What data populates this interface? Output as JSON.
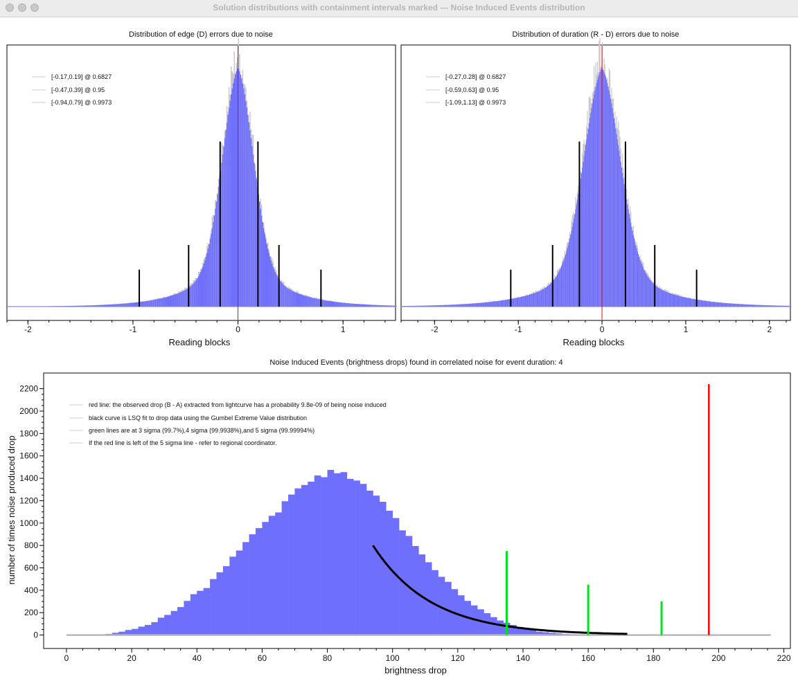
{
  "window": {
    "title": "Solution distributions with containment intervals marked --- Noise Induced Events distribution"
  },
  "colors": {
    "hist": "#6f6ffd",
    "red_line": "#ff0000",
    "green_line": "#00e020",
    "fit_curve": "#000000"
  },
  "chart_data": [
    {
      "type": "bar",
      "title": "Distribution of edge (D) errors due to noise",
      "xlabel": "Reading blocks",
      "ylabel": "",
      "xlim": [
        -2.2,
        1.5
      ],
      "xticks": [
        -2,
        -1,
        0,
        1
      ],
      "distribution": {
        "center": 0.0,
        "core_sigma": 0.15,
        "tail_scale": 0.35,
        "peak": 1.0
      },
      "red_line_x": 0,
      "interval_lines": [
        {
          "x": -0.17,
          "height": 0.67
        },
        {
          "x": 0.19,
          "height": 0.67
        },
        {
          "x": -0.47,
          "height": 0.25
        },
        {
          "x": 0.39,
          "height": 0.25
        },
        {
          "x": -0.94,
          "height": 0.15
        },
        {
          "x": 0.79,
          "height": 0.15
        }
      ],
      "legend": [
        "[-0.17,0.19] @ 0.6827",
        "[-0.47,0.39] @ 0.95",
        "[-0.94,0.79] @ 0.9973"
      ],
      "legend_position": "top-left"
    },
    {
      "type": "bar",
      "title": "Distribution of duration (R - D) errors due to noise",
      "xlabel": "Reading blocks",
      "ylabel": "",
      "xlim": [
        -2.4,
        2.25
      ],
      "xticks": [
        -2,
        -1,
        0,
        1,
        2
      ],
      "distribution": {
        "center": 0.0,
        "core_sigma": 0.22,
        "tail_scale": 0.5,
        "peak": 1.0
      },
      "red_line_x": 0,
      "interval_lines": [
        {
          "x": -0.27,
          "height": 0.67
        },
        {
          "x": 0.28,
          "height": 0.67
        },
        {
          "x": -0.59,
          "height": 0.25
        },
        {
          "x": 0.63,
          "height": 0.25
        },
        {
          "x": -1.09,
          "height": 0.15
        },
        {
          "x": 1.13,
          "height": 0.15
        }
      ],
      "legend": [
        "[-0.27,0.28] @ 0.6827",
        "[-0.59,0.63] @ 0.95",
        "[-1.09,1.13] @ 0.9973"
      ],
      "legend_position": "top-left"
    },
    {
      "type": "bar",
      "title": "Noise Induced Events (brightness drops) found in correlated noise for event duration: 4",
      "xlabel": "brightness drop",
      "ylabel": "number of times noise produced drop",
      "xlim": [
        -7,
        222
      ],
      "ylim": [
        -120,
        2340
      ],
      "xticks": [
        0,
        20,
        40,
        60,
        80,
        100,
        120,
        140,
        160,
        180,
        200,
        220
      ],
      "yticks": [
        0,
        200,
        400,
        600,
        800,
        1000,
        1200,
        1400,
        1600,
        1800,
        2000,
        2200
      ],
      "histogram": {
        "bin_start": 0,
        "bin_width": 2,
        "counts": [
          0,
          0,
          0,
          0,
          0,
          5,
          10,
          20,
          30,
          45,
          55,
          75,
          90,
          115,
          155,
          180,
          215,
          250,
          305,
          365,
          395,
          420,
          500,
          560,
          615,
          700,
          755,
          830,
          900,
          955,
          1010,
          1065,
          1095,
          1195,
          1255,
          1310,
          1340,
          1370,
          1425,
          1410,
          1475,
          1445,
          1455,
          1395,
          1380,
          1350,
          1290,
          1245,
          1190,
          1110,
          1045,
          935,
          885,
          795,
          720,
          650,
          580,
          520,
          475,
          410,
          355,
          305,
          265,
          230,
          195,
          160,
          130,
          110,
          90,
          70,
          55,
          45,
          30,
          25,
          20,
          15,
          10,
          8,
          5,
          3,
          2,
          1,
          0,
          0,
          0,
          0,
          0
        ]
      },
      "fit_curve": {
        "x_start": 94,
        "x_end": 172,
        "y_start": 800,
        "decay": 17.8,
        "label": "Gumbel Extreme Value fit"
      },
      "green_lines": [
        {
          "x": 135,
          "height": 750
        },
        {
          "x": 160,
          "height": 450
        },
        {
          "x": 182.5,
          "height": 300
        }
      ],
      "red_line": {
        "x": 197,
        "height": 2240
      },
      "gray_baseline_range": [
        0,
        216
      ],
      "legend": [
        "red line: the observed drop (B - A) extracted from lightcurve has a probability 9.8e-09 of being noise induced",
        "black curve is LSQ fit to drop data using the Gumbel Extreme Value distribution",
        "green lines are at 3 sigma (99.7%),4 sigma (99.9938%),and 5 sigma (99.99994%)",
        "If the red line is left of the 5 sigma line - refer to regional coordinator."
      ],
      "legend_position": "top-left"
    }
  ]
}
